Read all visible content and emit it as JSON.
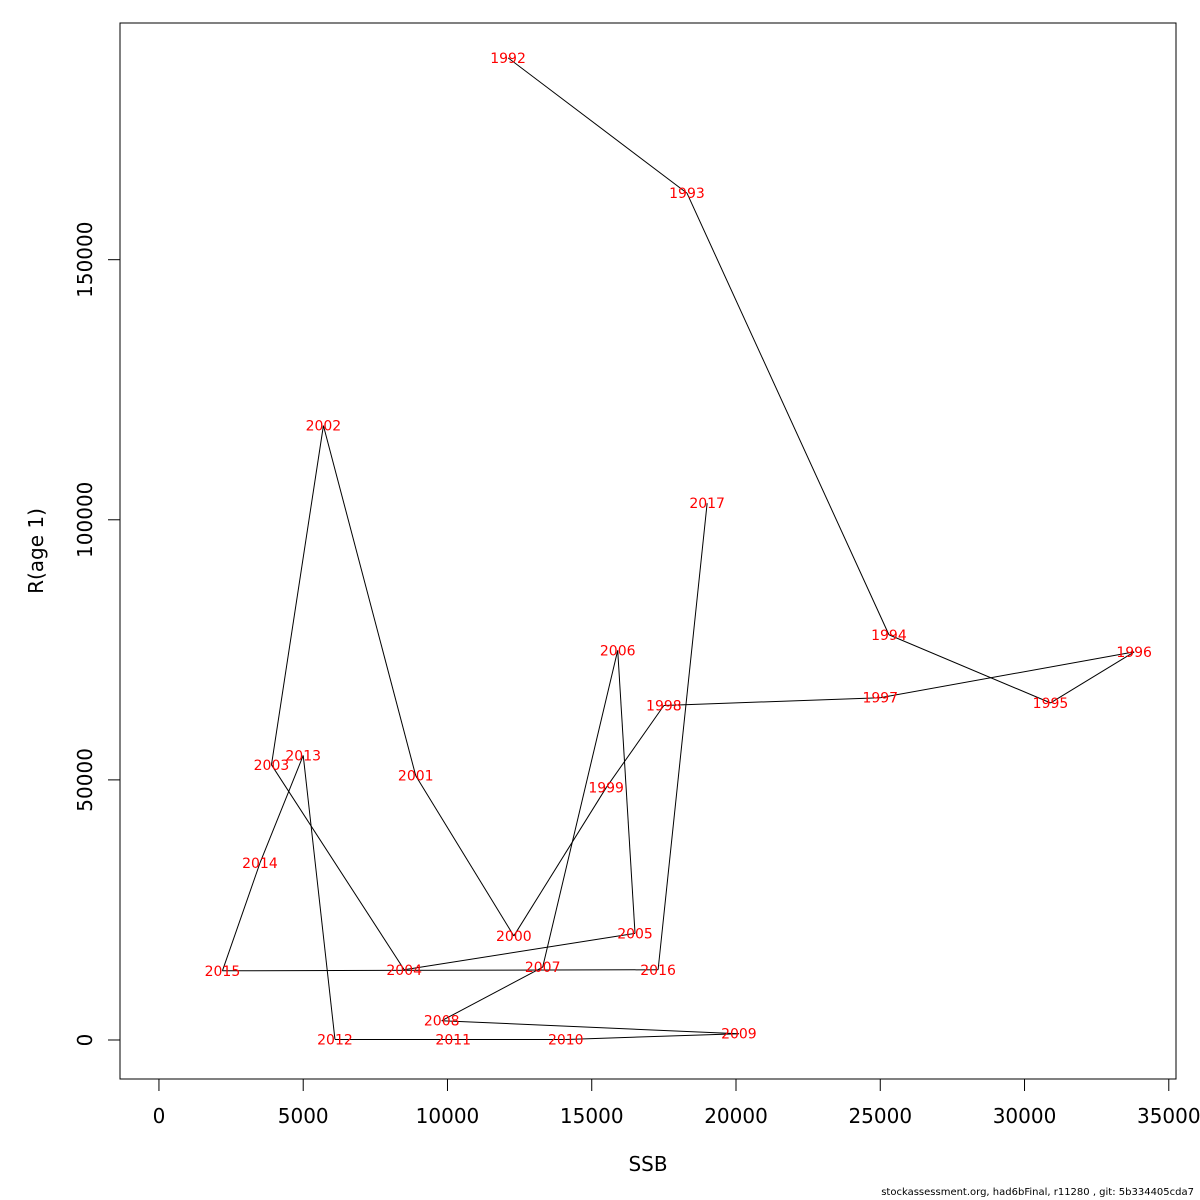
{
  "chart_data": {
    "type": "line",
    "xlabel": "SSB",
    "ylabel": "R(age 1)",
    "xlim": [
      -1350,
      35250
    ],
    "ylim": [
      -7500,
      195500
    ],
    "xticks": [
      "0",
      "5000",
      "10000",
      "15000",
      "20000",
      "25000",
      "30000",
      "35000"
    ],
    "xtick_values": [
      0,
      5000,
      10000,
      15000,
      20000,
      25000,
      30000,
      35000
    ],
    "yticks": [
      "0",
      "50000",
      "100000",
      "150000"
    ],
    "ytick_values": [
      0,
      50000,
      100000,
      150000
    ],
    "grid": false,
    "line_color": "#000000",
    "label_color": "#ff0000",
    "points": [
      {
        "label": "1992",
        "x": 12100,
        "y": 188800
      },
      {
        "label": "1993",
        "x": 18300,
        "y": 162800
      },
      {
        "label": "1994",
        "x": 25300,
        "y": 77900
      },
      {
        "label": "1995",
        "x": 30900,
        "y": 64800
      },
      {
        "label": "1996",
        "x": 33800,
        "y": 74600
      },
      {
        "label": "1997",
        "x": 25000,
        "y": 65800
      },
      {
        "label": "1998",
        "x": 17500,
        "y": 64300
      },
      {
        "label": "1999",
        "x": 15500,
        "y": 48500
      },
      {
        "label": "2000",
        "x": 12300,
        "y": 20000
      },
      {
        "label": "2001",
        "x": 8900,
        "y": 50800
      },
      {
        "label": "2002",
        "x": 5700,
        "y": 118100
      },
      {
        "label": "2003",
        "x": 3900,
        "y": 52900
      },
      {
        "label": "2004",
        "x": 8500,
        "y": 13500
      },
      {
        "label": "2005",
        "x": 16500,
        "y": 20500
      },
      {
        "label": "2006",
        "x": 15900,
        "y": 74900
      },
      {
        "label": "2007",
        "x": 13300,
        "y": 14000
      },
      {
        "label": "2008",
        "x": 9800,
        "y": 3700
      },
      {
        "label": "2009",
        "x": 20100,
        "y": 1200
      },
      {
        "label": "2010",
        "x": 14100,
        "y": 100
      },
      {
        "label": "2011",
        "x": 10200,
        "y": 100
      },
      {
        "label": "2012",
        "x": 6100,
        "y": 100
      },
      {
        "label": "2013",
        "x": 5000,
        "y": 54700
      },
      {
        "label": "2014",
        "x": 3500,
        "y": 34000
      },
      {
        "label": "2015",
        "x": 2200,
        "y": 13300
      },
      {
        "label": "2016",
        "x": 17300,
        "y": 13500
      },
      {
        "label": "2017",
        "x": 19000,
        "y": 103200
      }
    ]
  },
  "footer_text": "stockassessment.org, had6bFinal, r11280 , git: 5b334405cda7"
}
